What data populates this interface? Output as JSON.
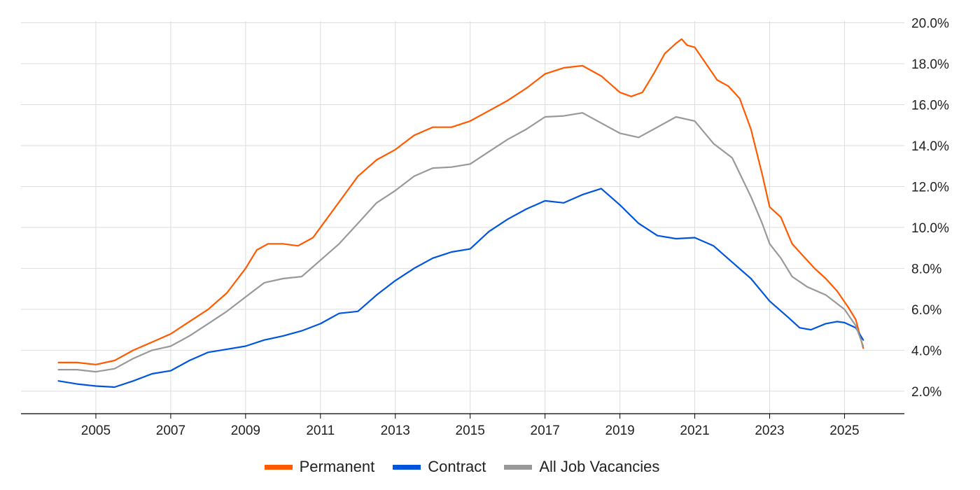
{
  "chart_data": {
    "type": "line",
    "xlim": [
      2003.0,
      2026.6
    ],
    "ylim": [
      0.9,
      20.6
    ],
    "y_ticks": [
      2,
      4,
      6,
      8,
      10,
      12,
      14,
      16,
      18,
      20
    ],
    "y_tick_labels": [
      "2.0%",
      "4.0%",
      "6.0%",
      "8.0%",
      "10.0%",
      "12.0%",
      "14.0%",
      "16.0%",
      "18.0%",
      "20.0%"
    ],
    "x_ticks": [
      2005,
      2007,
      2009,
      2011,
      2013,
      2015,
      2017,
      2019,
      2021,
      2023,
      2025
    ],
    "x_tick_labels": [
      "2005",
      "2007",
      "2009",
      "2011",
      "2013",
      "2015",
      "2017",
      "2019",
      "2021",
      "2023",
      "2025"
    ],
    "grid": true,
    "legend_position": "bottom",
    "series": [
      {
        "name": "Permanent",
        "color": "#ff5a00",
        "points": [
          [
            2004.0,
            3.4
          ],
          [
            2004.5,
            3.4
          ],
          [
            2005.0,
            3.3
          ],
          [
            2005.5,
            3.5
          ],
          [
            2006.0,
            4.0
          ],
          [
            2006.5,
            4.4
          ],
          [
            2007.0,
            4.8
          ],
          [
            2007.5,
            5.4
          ],
          [
            2008.0,
            6.0
          ],
          [
            2008.5,
            6.8
          ],
          [
            2009.0,
            8.0
          ],
          [
            2009.3,
            8.9
          ],
          [
            2009.6,
            9.2
          ],
          [
            2010.0,
            9.2
          ],
          [
            2010.4,
            9.1
          ],
          [
            2010.8,
            9.5
          ],
          [
            2011.2,
            10.5
          ],
          [
            2011.6,
            11.5
          ],
          [
            2012.0,
            12.5
          ],
          [
            2012.5,
            13.3
          ],
          [
            2013.0,
            13.8
          ],
          [
            2013.5,
            14.5
          ],
          [
            2014.0,
            14.9
          ],
          [
            2014.5,
            14.9
          ],
          [
            2015.0,
            15.2
          ],
          [
            2015.5,
            15.7
          ],
          [
            2016.0,
            16.2
          ],
          [
            2016.5,
            16.8
          ],
          [
            2017.0,
            17.5
          ],
          [
            2017.5,
            17.8
          ],
          [
            2018.0,
            17.9
          ],
          [
            2018.5,
            17.4
          ],
          [
            2019.0,
            16.6
          ],
          [
            2019.3,
            16.4
          ],
          [
            2019.6,
            16.6
          ],
          [
            2019.9,
            17.5
          ],
          [
            2020.2,
            18.5
          ],
          [
            2020.5,
            19.0
          ],
          [
            2020.65,
            19.2
          ],
          [
            2020.8,
            18.9
          ],
          [
            2021.0,
            18.8
          ],
          [
            2021.3,
            18.0
          ],
          [
            2021.6,
            17.2
          ],
          [
            2021.9,
            16.9
          ],
          [
            2022.2,
            16.3
          ],
          [
            2022.5,
            14.8
          ],
          [
            2022.8,
            12.6
          ],
          [
            2023.0,
            11.0
          ],
          [
            2023.3,
            10.5
          ],
          [
            2023.6,
            9.2
          ],
          [
            2023.9,
            8.6
          ],
          [
            2024.2,
            8.0
          ],
          [
            2024.5,
            7.5
          ],
          [
            2024.8,
            6.9
          ],
          [
            2025.1,
            6.1
          ],
          [
            2025.3,
            5.5
          ],
          [
            2025.5,
            4.1
          ]
        ]
      },
      {
        "name": "Contract",
        "color": "#0055dd",
        "points": [
          [
            2004.0,
            2.5
          ],
          [
            2004.5,
            2.35
          ],
          [
            2005.0,
            2.25
          ],
          [
            2005.5,
            2.2
          ],
          [
            2006.0,
            2.5
          ],
          [
            2006.5,
            2.85
          ],
          [
            2007.0,
            3.0
          ],
          [
            2007.5,
            3.5
          ],
          [
            2008.0,
            3.9
          ],
          [
            2008.5,
            4.05
          ],
          [
            2009.0,
            4.2
          ],
          [
            2009.5,
            4.5
          ],
          [
            2010.0,
            4.7
          ],
          [
            2010.5,
            4.95
          ],
          [
            2011.0,
            5.3
          ],
          [
            2011.5,
            5.8
          ],
          [
            2012.0,
            5.9
          ],
          [
            2012.5,
            6.7
          ],
          [
            2013.0,
            7.4
          ],
          [
            2013.5,
            8.0
          ],
          [
            2014.0,
            8.5
          ],
          [
            2014.5,
            8.8
          ],
          [
            2015.0,
            8.95
          ],
          [
            2015.5,
            9.8
          ],
          [
            2016.0,
            10.4
          ],
          [
            2016.5,
            10.9
          ],
          [
            2017.0,
            11.3
          ],
          [
            2017.5,
            11.2
          ],
          [
            2018.0,
            11.6
          ],
          [
            2018.5,
            11.9
          ],
          [
            2019.0,
            11.1
          ],
          [
            2019.5,
            10.2
          ],
          [
            2020.0,
            9.6
          ],
          [
            2020.5,
            9.45
          ],
          [
            2021.0,
            9.5
          ],
          [
            2021.5,
            9.1
          ],
          [
            2022.0,
            8.3
          ],
          [
            2022.5,
            7.5
          ],
          [
            2023.0,
            6.4
          ],
          [
            2023.5,
            5.6
          ],
          [
            2023.8,
            5.1
          ],
          [
            2024.1,
            5.0
          ],
          [
            2024.5,
            5.3
          ],
          [
            2024.8,
            5.4
          ],
          [
            2025.0,
            5.35
          ],
          [
            2025.3,
            5.1
          ],
          [
            2025.5,
            4.5
          ]
        ]
      },
      {
        "name": "All Job Vacancies",
        "color": "#999999",
        "points": [
          [
            2004.0,
            3.05
          ],
          [
            2004.5,
            3.05
          ],
          [
            2005.0,
            2.95
          ],
          [
            2005.5,
            3.1
          ],
          [
            2006.0,
            3.6
          ],
          [
            2006.5,
            4.0
          ],
          [
            2007.0,
            4.2
          ],
          [
            2007.5,
            4.7
          ],
          [
            2008.0,
            5.3
          ],
          [
            2008.5,
            5.9
          ],
          [
            2009.0,
            6.6
          ],
          [
            2009.5,
            7.3
          ],
          [
            2010.0,
            7.5
          ],
          [
            2010.5,
            7.6
          ],
          [
            2011.0,
            8.4
          ],
          [
            2011.5,
            9.2
          ],
          [
            2012.0,
            10.2
          ],
          [
            2012.5,
            11.2
          ],
          [
            2013.0,
            11.8
          ],
          [
            2013.5,
            12.5
          ],
          [
            2014.0,
            12.9
          ],
          [
            2014.5,
            12.95
          ],
          [
            2015.0,
            13.1
          ],
          [
            2015.5,
            13.7
          ],
          [
            2016.0,
            14.3
          ],
          [
            2016.5,
            14.8
          ],
          [
            2017.0,
            15.4
          ],
          [
            2017.5,
            15.45
          ],
          [
            2018.0,
            15.6
          ],
          [
            2018.5,
            15.1
          ],
          [
            2019.0,
            14.6
          ],
          [
            2019.5,
            14.4
          ],
          [
            2020.0,
            14.9
          ],
          [
            2020.5,
            15.4
          ],
          [
            2021.0,
            15.2
          ],
          [
            2021.5,
            14.1
          ],
          [
            2022.0,
            13.4
          ],
          [
            2022.5,
            11.5
          ],
          [
            2022.8,
            10.2
          ],
          [
            2023.0,
            9.2
          ],
          [
            2023.3,
            8.5
          ],
          [
            2023.6,
            7.6
          ],
          [
            2024.0,
            7.1
          ],
          [
            2024.5,
            6.7
          ],
          [
            2025.0,
            6.0
          ],
          [
            2025.3,
            5.2
          ],
          [
            2025.5,
            4.2
          ]
        ]
      }
    ]
  }
}
